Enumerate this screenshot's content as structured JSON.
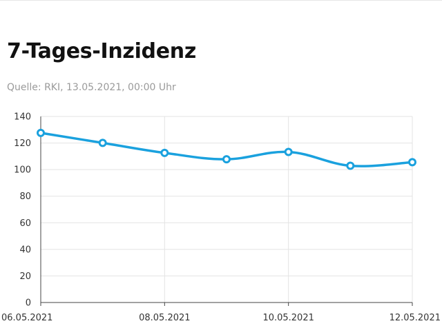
{
  "header": {
    "title": "7-Tages-Inzidenz",
    "source": "Quelle: RKI, 13.05.2021, 00:00 Uhr"
  },
  "colors": {
    "line": "#1aa1de",
    "grid": "#e3e3e3",
    "axis": "#444444"
  },
  "chart_data": {
    "type": "line",
    "title": "7-Tages-Inzidenz",
    "xlabel": "",
    "ylabel": "",
    "x": [
      "06.05.2021",
      "07.05.2021",
      "08.05.2021",
      "09.05.2021",
      "10.05.2021",
      "11.05.2021",
      "12.05.2021"
    ],
    "x_tick_labels": [
      "06.05.2021",
      "08.05.2021",
      "10.05.2021",
      "12.05.2021"
    ],
    "series": [
      {
        "values": [
          127.6,
          120.1,
          112.6,
          107.8,
          113.3,
          102.9,
          105.6
        ]
      }
    ],
    "ylim": [
      0,
      140
    ],
    "yticks": [
      0,
      20,
      40,
      60,
      80,
      100,
      120,
      140
    ],
    "grid": true,
    "legend": "none"
  }
}
